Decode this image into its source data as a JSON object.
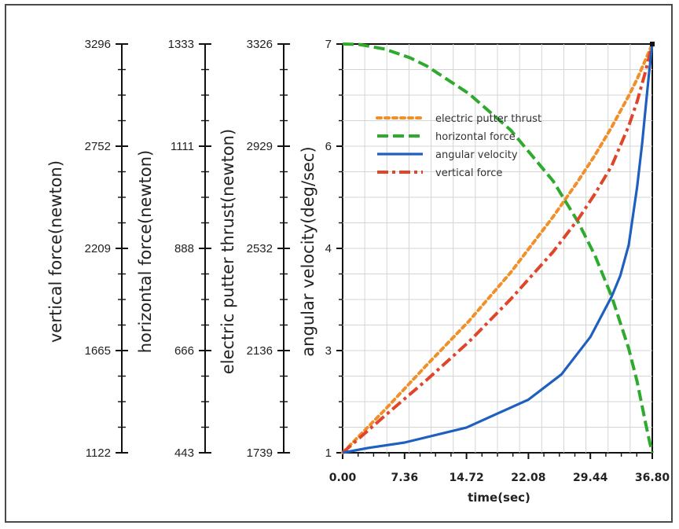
{
  "chart_data": {
    "type": "line",
    "x_axis": {
      "label": "time(sec)",
      "ticks": [
        "0.00",
        "7.36",
        "14.72",
        "22.08",
        "29.44",
        "36.80"
      ],
      "range": [
        0,
        36.8
      ]
    },
    "y_axes": [
      {
        "id": "vertical",
        "label": "vertical force(newton)",
        "ticks": [
          "1122",
          "1665",
          "2209",
          "2752",
          "3296"
        ],
        "range": [
          1122,
          3296
        ]
      },
      {
        "id": "horizontal",
        "label": "horizontal force(newton)",
        "ticks": [
          "443",
          "666",
          "888",
          "1111",
          "1333"
        ],
        "range": [
          443,
          1333
        ]
      },
      {
        "id": "thrust",
        "label": "electric putter thrust(newton)",
        "ticks": [
          "1739",
          "2136",
          "2532",
          "2929",
          "3326"
        ],
        "range": [
          1739,
          3326
        ]
      },
      {
        "id": "angular",
        "label": "angular velocity(deg/sec)",
        "ticks": [
          "1",
          "3",
          "4",
          "6",
          "7"
        ],
        "range": [
          1,
          7
        ]
      }
    ],
    "grid": true,
    "legend_position": "top-right",
    "series": [
      {
        "name": "electric putter thrust",
        "axis": "thrust",
        "color": "#f0902a",
        "style": "dotted",
        "x": [
          0,
          5,
          10,
          15,
          20,
          25,
          28,
          30,
          32,
          34,
          35,
          36,
          36.8
        ],
        "y": [
          1739,
          1905,
          2080,
          2250,
          2440,
          2655,
          2795,
          2895,
          3005,
          3125,
          3190,
          3265,
          3326
        ]
      },
      {
        "name": "horizontal force",
        "axis": "horizontal",
        "color": "#2eaa2e",
        "style": "dashed",
        "x": [
          0,
          2,
          5,
          8,
          10,
          15,
          20,
          25,
          28,
          30,
          32,
          34,
          35,
          36,
          36.5,
          36.8
        ],
        "y": [
          1333,
          1332,
          1322,
          1303,
          1285,
          1225,
          1145,
          1035,
          945,
          872,
          782,
          670,
          598,
          508,
          465,
          443
        ]
      },
      {
        "name": "angular velocity",
        "axis": "angular",
        "color": "#1f5fbf",
        "style": "solid",
        "x": [
          0,
          3,
          7.36,
          14.72,
          22.08,
          26,
          29.44,
          32,
          33,
          34,
          35,
          35.6,
          36,
          36.4,
          36.8
        ],
        "y": [
          1.0,
          1.07,
          1.15,
          1.37,
          1.78,
          2.15,
          2.7,
          3.3,
          3.6,
          4.05,
          4.9,
          5.55,
          6.05,
          6.55,
          7.0
        ]
      },
      {
        "name": "vertical force",
        "axis": "vertical",
        "color": "#e0452a",
        "style": "dashdot",
        "x": [
          0,
          5,
          10,
          15,
          20,
          25,
          28,
          30,
          32,
          34,
          35,
          36,
          36.8
        ],
        "y": [
          1122,
          1318,
          1510,
          1712,
          1940,
          2190,
          2365,
          2500,
          2650,
          2860,
          2990,
          3150,
          3296
        ]
      }
    ]
  }
}
